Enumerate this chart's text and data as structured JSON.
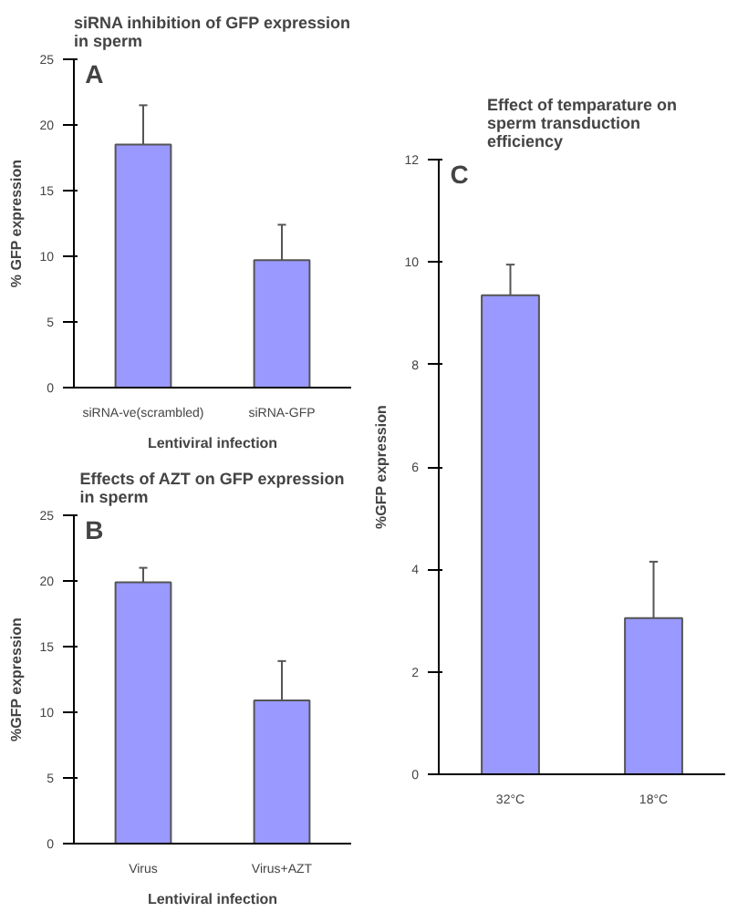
{
  "chart_data": [
    {
      "type": "bar",
      "title": "siRNA inhibition of GFP expression in sperm",
      "xlabel": "Lentiviral infection",
      "ylabel": "% GFP expression",
      "annotations": [
        "A"
      ],
      "categories": [
        "siRNA-ve(scrambled)",
        "siRNA-GFP"
      ],
      "values": [
        18.5,
        9.7
      ],
      "errors": [
        [
          18.5,
          21.5
        ],
        [
          9.7,
          12.4
        ]
      ],
      "color": "#9999ff",
      "ylim": [
        0,
        25
      ],
      "yticks": [
        0,
        5,
        10,
        15,
        20,
        25
      ]
    },
    {
      "type": "bar",
      "title": "Effects of AZT on GFP expression in sperm",
      "xlabel": "Lentiviral infection",
      "ylabel": "%GFP expression",
      "annotations": [
        "B"
      ],
      "categories": [
        "Virus",
        "Virus+AZT"
      ],
      "values": [
        19.9,
        10.9
      ],
      "errors": [
        [
          19.9,
          21.0
        ],
        [
          10.9,
          13.9
        ]
      ],
      "color": "#9999ff",
      "ylim": [
        0,
        25
      ],
      "yticks": [
        0,
        5,
        10,
        15,
        20,
        25
      ]
    },
    {
      "type": "bar",
      "title": "Effect of temparature on sperm transduction efficiency",
      "ylabel": "%GFP expression",
      "annotations": [
        "C"
      ],
      "categories": [
        "32°C",
        "18°C"
      ],
      "values": [
        9.35,
        3.05
      ],
      "errors": [
        [
          9.35,
          9.95
        ],
        [
          3.05,
          4.15
        ]
      ],
      "color": "#9999ff",
      "ylim": [
        0,
        12
      ],
      "yticks": [
        0,
        2,
        4,
        6,
        8,
        10,
        12
      ]
    }
  ]
}
